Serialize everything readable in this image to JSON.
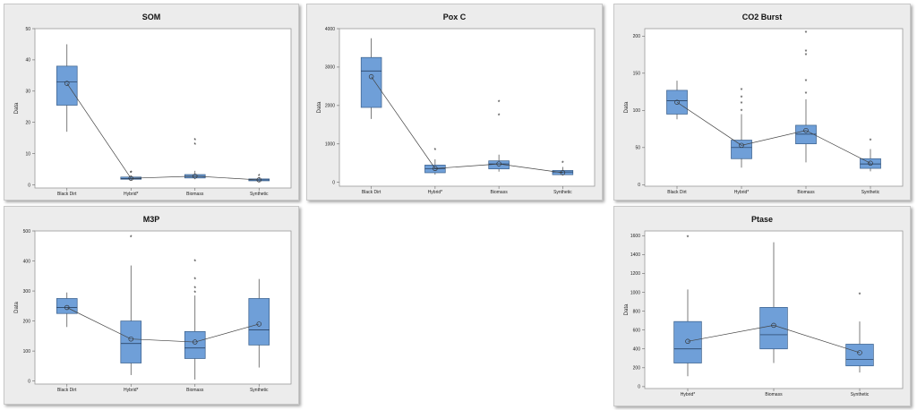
{
  "colors": {
    "box_fill": "#6f9fd8",
    "box_stroke": "#3a5f8a",
    "line": "#444444",
    "panel_bg": "#ececec",
    "plot_bg": "#ffffff"
  },
  "chart_data": [
    {
      "id": "som",
      "type": "box",
      "title": "SOM",
      "ylabel": "Data",
      "categories": [
        "Black Dirt",
        "Hybrid*",
        "Biomass",
        "Synthetic"
      ],
      "ylim": [
        -1,
        50
      ],
      "yticks": [
        0,
        10,
        20,
        30,
        40,
        50
      ],
      "boxes": [
        {
          "min": 17,
          "q1": 25.5,
          "median": 33,
          "q3": 38,
          "max": 45,
          "mean": 32.5,
          "outliers": []
        },
        {
          "min": 1.5,
          "q1": 1.8,
          "median": 2,
          "q3": 2.5,
          "max": 3,
          "mean": 2.1,
          "outliers": [
            4,
            4
          ]
        },
        {
          "min": 1.8,
          "q1": 2.2,
          "median": 2.7,
          "q3": 3.3,
          "max": 4.5,
          "mean": 2.8,
          "outliers": [
            13,
            14.5
          ]
        },
        {
          "min": 1,
          "q1": 1.3,
          "median": 1.6,
          "q3": 1.9,
          "max": 2.5,
          "mean": 1.6,
          "outliers": [
            3
          ]
        }
      ]
    },
    {
      "id": "poxc",
      "type": "box",
      "title": "Pox C",
      "ylabel": "Data",
      "categories": [
        "Black Dirt",
        "Hybrid*",
        "Biomass",
        "Synthetic"
      ],
      "ylim": [
        -100,
        4000
      ],
      "yticks": [
        0,
        1000,
        2000,
        3000,
        4000
      ],
      "boxes": [
        {
          "min": 1650,
          "q1": 1950,
          "median": 2900,
          "q3": 3250,
          "max": 3750,
          "mean": 2750,
          "outliers": []
        },
        {
          "min": 200,
          "q1": 250,
          "median": 350,
          "q3": 450,
          "max": 600,
          "mean": 360,
          "outliers": [
            850
          ]
        },
        {
          "min": 280,
          "q1": 350,
          "median": 480,
          "q3": 560,
          "max": 720,
          "mean": 480,
          "outliers": [
            1750,
            2100
          ]
        },
        {
          "min": 180,
          "q1": 200,
          "median": 270,
          "q3": 310,
          "max": 400,
          "mean": 250,
          "outliers": [
            520
          ]
        }
      ]
    },
    {
      "id": "co2",
      "type": "box",
      "title": "CO2 Burst",
      "ylabel": "Data",
      "categories": [
        "Black Dirt",
        "Hybrid*",
        "Biomass",
        "Synthetic"
      ],
      "ylim": [
        -2,
        210
      ],
      "yticks": [
        0,
        50,
        100,
        150,
        200
      ],
      "boxes": [
        {
          "min": 88,
          "q1": 95,
          "median": 113,
          "q3": 127,
          "max": 140,
          "mean": 111,
          "outliers": []
        },
        {
          "min": 23,
          "q1": 35,
          "median": 50,
          "q3": 60,
          "max": 95,
          "mean": 53,
          "outliers": [
            100,
            110,
            118,
            128
          ]
        },
        {
          "min": 30,
          "q1": 55,
          "median": 68,
          "q3": 80,
          "max": 115,
          "mean": 73,
          "outliers": [
            123,
            140,
            175,
            180,
            205
          ]
        },
        {
          "min": 18,
          "q1": 22,
          "median": 28,
          "q3": 35,
          "max": 48,
          "mean": 29,
          "outliers": [
            60
          ]
        }
      ]
    },
    {
      "id": "m3p",
      "type": "box",
      "title": "M3P",
      "ylabel": "Data",
      "categories": [
        "Black Dirt",
        "Hybrid*",
        "Biomass",
        "Synthetic"
      ],
      "ylim": [
        -10,
        500
      ],
      "yticks": [
        0,
        100,
        200,
        300,
        400,
        500
      ],
      "boxes": [
        {
          "min": 180,
          "q1": 225,
          "median": 245,
          "q3": 275,
          "max": 295,
          "mean": 245,
          "outliers": []
        },
        {
          "min": 20,
          "q1": 60,
          "median": 125,
          "q3": 200,
          "max": 385,
          "mean": 140,
          "outliers": [
            480
          ]
        },
        {
          "min": 5,
          "q1": 75,
          "median": 110,
          "q3": 165,
          "max": 285,
          "mean": 130,
          "outliers": [
            295,
            310,
            340,
            400
          ]
        },
        {
          "min": 45,
          "q1": 120,
          "median": 170,
          "q3": 275,
          "max": 340,
          "mean": 190,
          "outliers": []
        }
      ]
    },
    {
      "id": "ptase",
      "type": "box",
      "title": "Ptase",
      "ylabel": "Data",
      "categories": [
        "Hybrid*",
        "Biomass",
        "Synthetic"
      ],
      "ylim": [
        -20,
        1650
      ],
      "yticks": [
        0,
        200,
        400,
        600,
        800,
        1000,
        1200,
        1400,
        1600
      ],
      "boxes": [
        {
          "min": 110,
          "q1": 250,
          "median": 400,
          "q3": 690,
          "max": 1030,
          "mean": 480,
          "outliers": [
            1590
          ]
        },
        {
          "min": 250,
          "q1": 400,
          "median": 550,
          "q3": 840,
          "max": 1530,
          "mean": 650,
          "outliers": []
        },
        {
          "min": 150,
          "q1": 220,
          "median": 290,
          "q3": 450,
          "max": 690,
          "mean": 360,
          "outliers": [
            980
          ]
        }
      ]
    }
  ]
}
